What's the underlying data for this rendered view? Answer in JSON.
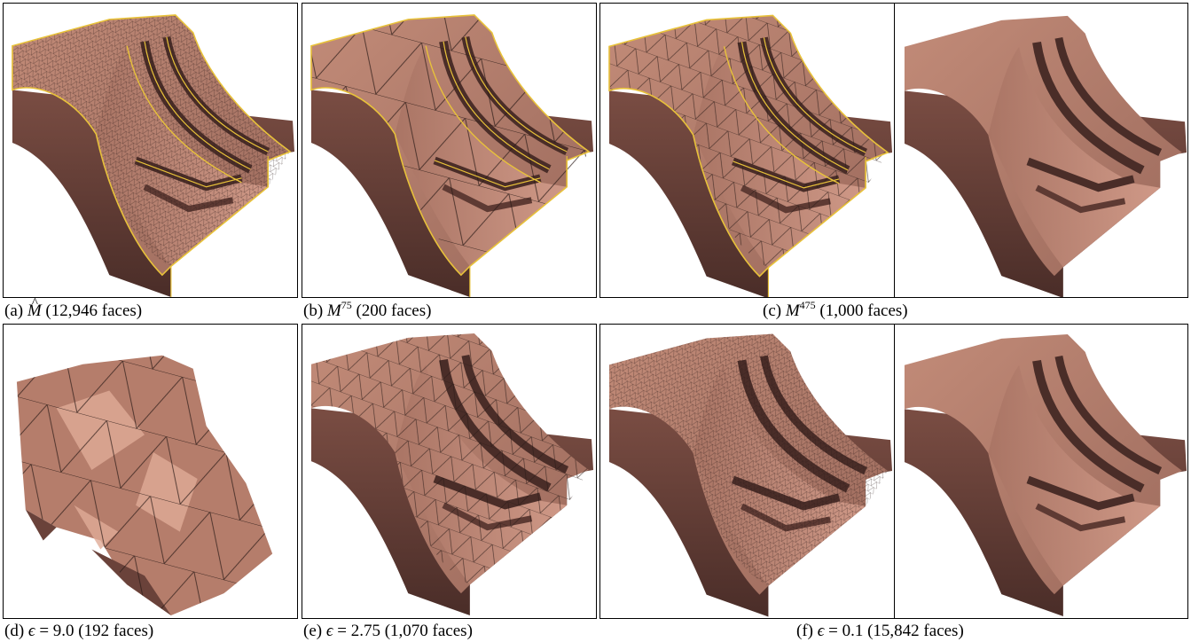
{
  "figure": {
    "captions": {
      "a": {
        "prefix": "(a) ",
        "symbol": "M",
        "suffix": " (12,946 faces)"
      },
      "b": {
        "prefix": "(b) ",
        "symbol": "M",
        "superscript": "75",
        "suffix": " (200 faces)"
      },
      "c": {
        "prefix": "(c) ",
        "symbol": "M",
        "superscript": "475",
        "suffix": " (1,000 faces)"
      },
      "d": {
        "prefix": "(d) ",
        "symbol": "ϵ",
        "suffix": " = 9.0 (192 faces)"
      },
      "e": {
        "prefix": "(e) ",
        "symbol": "ϵ",
        "suffix": " = 2.75 (1,070 faces)"
      },
      "f": {
        "prefix": "(f) ",
        "symbol": "ϵ",
        "suffix": " = 0.1 (15,842 faces)"
      }
    },
    "colors": {
      "mesh_base": "#b07a6a",
      "mesh_dark": "#5e3a33",
      "mesh_light": "#d9a08d",
      "mesh_shadow": "#3f2622",
      "boundary_curve": "#e8c23a",
      "edge_line": "#2b1a17"
    }
  }
}
